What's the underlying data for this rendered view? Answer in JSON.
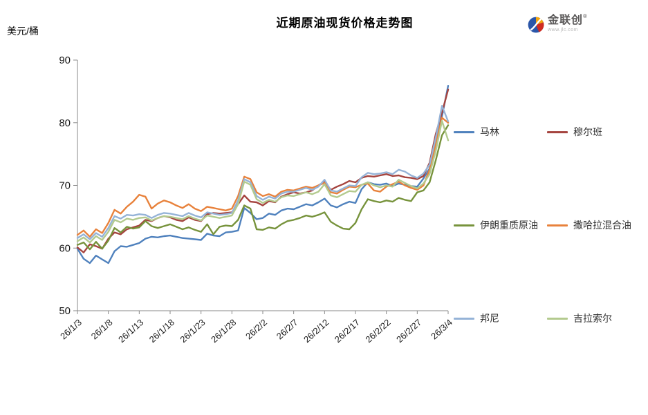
{
  "header": {
    "title": "近期原油现货价格走势图",
    "y_unit": "美元/桶",
    "logo": {
      "name": "金联创",
      "reg": "®",
      "site": "www.jlc.com"
    }
  },
  "chart_data": {
    "type": "line",
    "title": "近期原油现货价格走势图",
    "xlabel": "",
    "ylabel": "美元/桶",
    "ylim": [
      50,
      90
    ],
    "yticks": [
      50,
      60,
      70,
      80,
      90
    ],
    "grid": false,
    "legend_position": "right",
    "x_tick_labels": [
      "26/1/3",
      "26/1/8",
      "26/1/13",
      "26/1/18",
      "26/1/23",
      "26/1/28",
      "26/2/2",
      "26/2/7",
      "26/2/12",
      "26/2/17",
      "26/2/22",
      "26/2/27",
      "26/3/4"
    ],
    "points_per_tick": 5,
    "series": [
      {
        "name": "马林",
        "color": "#4f81bd",
        "values": [
          59.9,
          58.3,
          57.6,
          58.8,
          58.2,
          57.6,
          59.5,
          60.3,
          60.2,
          60.5,
          60.8,
          61.5,
          61.8,
          61.7,
          61.9,
          62.0,
          61.8,
          61.6,
          61.5,
          61.4,
          61.3,
          62.3,
          62.0,
          61.9,
          62.5,
          62.6,
          62.8,
          66.4,
          65.6,
          64.6,
          64.8,
          65.5,
          65.3,
          66.0,
          66.3,
          66.2,
          66.6,
          67.0,
          66.8,
          67.3,
          67.9,
          66.8,
          66.5,
          67.0,
          67.4,
          67.2,
          69.4,
          70.5,
          70.2,
          70.1,
          70.3,
          69.9,
          70.3,
          70.1,
          69.9,
          69.8,
          71.1,
          72.7,
          77.3,
          81.0,
          85.9
        ]
      },
      {
        "name": "穆尔班",
        "color": "#a5443f",
        "values": [
          60.1,
          59.3,
          60.6,
          60.3,
          59.9,
          61.5,
          62.5,
          62.2,
          63.0,
          63.3,
          63.6,
          64.5,
          64.3,
          64.8,
          65.1,
          64.9,
          64.5,
          64.3,
          64.9,
          64.5,
          64.3,
          65.4,
          65.6,
          65.5,
          65.6,
          65.7,
          67.0,
          68.4,
          67.4,
          67.3,
          66.8,
          67.5,
          67.3,
          68.2,
          68.6,
          68.9,
          68.7,
          68.9,
          69.2,
          70.0,
          70.6,
          69.3,
          69.8,
          70.2,
          70.7,
          70.5,
          71.2,
          71.5,
          71.4,
          71.6,
          71.8,
          71.5,
          71.6,
          71.3,
          71.2,
          71.0,
          71.5,
          73.6,
          78.2,
          81.6,
          85.3
        ]
      },
      {
        "name": "伊朗重质原油",
        "color": "#77933c",
        "values": [
          60.5,
          60.9,
          59.8,
          61.0,
          59.9,
          61.2,
          63.2,
          62.5,
          63.4,
          63.1,
          63.3,
          64.3,
          63.5,
          63.2,
          63.5,
          63.8,
          63.4,
          63.0,
          63.3,
          62.9,
          62.6,
          63.8,
          62.2,
          63.4,
          63.6,
          63.5,
          64.5,
          66.8,
          66.3,
          63.0,
          62.9,
          63.3,
          63.1,
          63.8,
          64.3,
          64.5,
          64.8,
          65.2,
          65.0,
          65.3,
          65.7,
          64.2,
          63.6,
          63.1,
          63.0,
          64.0,
          66.2,
          67.8,
          67.5,
          67.3,
          67.6,
          67.4,
          68.0,
          67.7,
          67.5,
          68.9,
          69.2,
          70.5,
          74.0,
          78.0,
          79.6
        ]
      },
      {
        "name": "撒哈拉混合油",
        "color": "#e8823c",
        "values": [
          62.1,
          62.8,
          61.8,
          63.0,
          62.4,
          64.0,
          66.1,
          65.5,
          66.6,
          67.4,
          68.5,
          68.2,
          66.3,
          67.1,
          67.6,
          67.3,
          66.8,
          66.4,
          67.0,
          66.3,
          65.9,
          66.6,
          66.4,
          66.2,
          66.0,
          66.3,
          68.3,
          71.4,
          71.0,
          68.9,
          68.3,
          68.6,
          68.2,
          69.0,
          69.3,
          69.2,
          69.5,
          69.8,
          69.6,
          70.0,
          70.4,
          68.9,
          68.7,
          69.3,
          69.8,
          69.7,
          70.1,
          70.3,
          69.2,
          69.0,
          69.8,
          70.2,
          70.6,
          70.0,
          69.6,
          69.3,
          70.0,
          72.5,
          76.5,
          80.8,
          80.0
        ]
      },
      {
        "name": "邦尼",
        "color": "#95b3d7",
        "values": [
          61.6,
          62.2,
          61.4,
          62.4,
          61.8,
          63.2,
          65.1,
          64.7,
          65.3,
          65.2,
          65.4,
          65.3,
          64.8,
          65.3,
          65.6,
          65.5,
          65.3,
          65.1,
          65.6,
          65.2,
          64.9,
          65.7,
          65.5,
          65.3,
          65.4,
          65.6,
          67.6,
          71.0,
          70.5,
          68.3,
          67.7,
          68.2,
          67.9,
          68.7,
          69.0,
          69.0,
          69.3,
          69.6,
          69.3,
          69.8,
          70.9,
          69.2,
          69.0,
          69.5,
          70.0,
          69.9,
          71.3,
          72.0,
          71.8,
          71.9,
          72.1,
          71.8,
          72.5,
          72.2,
          71.6,
          71.2,
          71.9,
          73.3,
          77.6,
          82.7,
          80.2
        ]
      },
      {
        "name": "吉拉索尔",
        "color": "#b3ca8e",
        "values": [
          61.1,
          61.7,
          60.9,
          61.9,
          61.3,
          62.6,
          64.5,
          64.1,
          64.7,
          64.5,
          64.8,
          64.9,
          64.4,
          64.8,
          65.1,
          65.0,
          64.8,
          64.6,
          65.1,
          64.7,
          64.4,
          65.2,
          65.0,
          64.8,
          65.0,
          65.2,
          67.0,
          70.6,
          70.1,
          67.8,
          67.2,
          67.7,
          67.4,
          68.1,
          68.4,
          68.3,
          68.6,
          68.9,
          68.6,
          69.0,
          70.2,
          68.4,
          68.1,
          68.6,
          69.1,
          69.0,
          70.1,
          70.5,
          70.0,
          69.7,
          70.0,
          69.8,
          70.9,
          70.4,
          69.9,
          69.5,
          70.3,
          71.8,
          75.5,
          80.3,
          77.2
        ]
      }
    ]
  }
}
